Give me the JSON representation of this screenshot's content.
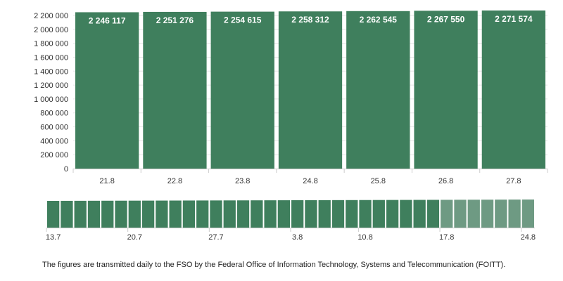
{
  "chart_data": {
    "type": "bar",
    "categories": [
      "21.8",
      "22.8",
      "23.8",
      "24.8",
      "25.8",
      "26.8",
      "27.8"
    ],
    "values": [
      2246117,
      2251276,
      2254615,
      2258312,
      2262545,
      2267550,
      2271574
    ],
    "data_labels": [
      "2 246 117",
      "2 251 276",
      "2 254 615",
      "2 258 312",
      "2 262 545",
      "2 267 550",
      "2 271 574"
    ],
    "ylim": [
      0,
      2200000
    ],
    "yticks": [
      0,
      200000,
      400000,
      600000,
      800000,
      1000000,
      1200000,
      1400000,
      1600000,
      1800000,
      2000000,
      2200000
    ],
    "ytick_labels": [
      "0",
      "200 000",
      "400 000",
      "600 000",
      "800 000",
      "1 000 000",
      "1 200 000",
      "1 400 000",
      "1 600 000",
      "1 800 000",
      "2 000 000",
      "2 200 000"
    ],
    "grid": true,
    "bar_color": "#3f7f5d",
    "label_color": "#ffffff"
  },
  "navigator": {
    "type": "bar",
    "tick_labels": [
      "13.7",
      "20.7",
      "27.7",
      "3.8",
      "10.8",
      "17.8",
      "24.8"
    ],
    "values": [
      2160000,
      2163000,
      2166000,
      2169000,
      2172000,
      2175000,
      2178000,
      2181000,
      2184000,
      2187000,
      2190000,
      2193000,
      2196000,
      2199000,
      2202000,
      2205000,
      2208000,
      2211000,
      2214000,
      2217000,
      2220000,
      2223000,
      2226000,
      2229000,
      2232000,
      2235000,
      2238000,
      2241000,
      2244000,
      2246117,
      2251276,
      2254615,
      2258312,
      2262545,
      2267550,
      2271574
    ],
    "selected_count": 7,
    "bar_color": "#3f7f5d",
    "selected_color": "#6e9a83"
  },
  "footnote": "The figures are transmitted daily to the FSO by the Federal Office of Information Technology, Systems and Telecommunication (FOITT)."
}
